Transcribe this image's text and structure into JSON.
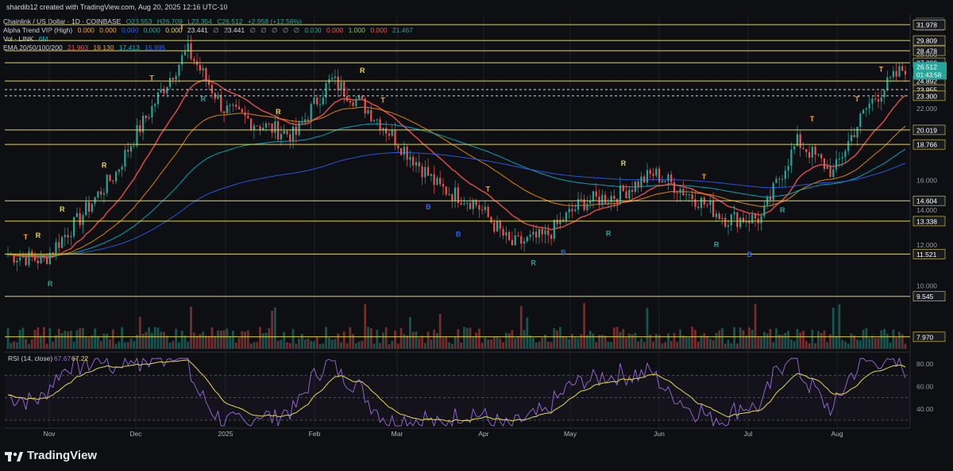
{
  "header": {
    "created": "shardib12 created with TradingView.com, Aug 20, 2025 12:16 UTC-10",
    "symbol_line": {
      "title": "Chainlink / US Dollar · 1D · COINBASE",
      "o": "O23.553",
      "h": "H26.709",
      "l": "L23.354",
      "c": "C26.512",
      "chg": "+2.958 (+12.56%)"
    },
    "alpha_line": {
      "title": "Alpha Trend VIP (High)",
      "values": [
        "0.000",
        "0.000",
        "0.000",
        "0.000",
        "0.000",
        "23.441",
        "∅",
        "23.441",
        "∅",
        "∅",
        "∅",
        "∅",
        "∅",
        "0.000",
        "0.000",
        "1.000",
        "0.000",
        "21.467"
      ]
    },
    "vol_line": {
      "title": "Vol · LINK",
      "value": "6M"
    },
    "ema_line": {
      "title": "EMA 20/50/100/200",
      "values": [
        "21.903",
        "19.130",
        "17.413",
        "15.995"
      ]
    }
  },
  "currency": "USD",
  "levels": [
    "31.978",
    "29.809",
    "28.478",
    "27.000",
    "24.892",
    "23.955",
    "23.300",
    "20.019",
    "18.766",
    "14.604",
    "13.338",
    "11.521",
    "9.545",
    "7.970"
  ],
  "price_ticks": [
    "28.000",
    "22.000",
    "16.000",
    "14.000",
    "12.000",
    "10.000"
  ],
  "last_price": {
    "value": "26.512",
    "countdown": "01:43:58"
  },
  "x_labels": [
    "Nov",
    "Dec",
    "2025",
    "Feb",
    "Mar",
    "Apr",
    "May",
    "Jun",
    "Jul",
    "Aug"
  ],
  "rsi": {
    "title": "RSI (14, close)",
    "values": [
      "67.67",
      "67.22"
    ],
    "ticks": [
      "80.00",
      "60.00",
      "40.00"
    ]
  },
  "brand": "TradingView",
  "colors": {
    "up": "#26a69a",
    "down": "#ef5350",
    "level": "#e5d84a",
    "ema20": "#ef5350",
    "ema50": "#ff9800",
    "ema100": "#00bcd4",
    "ema200": "#2962ff",
    "rsi": "#9c6ade",
    "rsi_ma": "#e5d84a"
  },
  "chart_data": {
    "type": "candlestick",
    "title": "Chainlink / US Dollar · 1D · COINBASE",
    "x": [
      "Nov",
      "Dec",
      "2025",
      "Feb",
      "Mar",
      "Apr",
      "May",
      "Jun",
      "Jul",
      "Aug"
    ],
    "y_range": [
      7.5,
      33.5
    ],
    "log_scale": true,
    "close_path": [
      [
        "Oct end",
        11.5
      ],
      [
        "Nov",
        11.2
      ],
      [
        "Nov mid",
        13.5
      ],
      [
        "Nov end",
        16.5
      ],
      [
        "Dec",
        22.0
      ],
      [
        "Dec mid",
        28.5
      ],
      [
        "Dec end",
        22.0
      ],
      [
        "2025",
        20.5
      ],
      [
        "2025 mid",
        19.5
      ],
      [
        "Jan end",
        25.0
      ],
      [
        "Feb",
        22.0
      ],
      [
        "Feb mid",
        18.5
      ],
      [
        "Mar",
        15.5
      ],
      [
        "Mar mid",
        14.5
      ],
      [
        "Apr",
        12.0
      ],
      [
        "Apr mid",
        12.5
      ],
      [
        "Apr end",
        14.5
      ],
      [
        "May",
        15.0
      ],
      [
        "May mid",
        16.5
      ],
      [
        "Jun",
        15.0
      ],
      [
        "Jun mid",
        13.5
      ],
      [
        "Jul",
        13.5
      ],
      [
        "Jul mid",
        19.0
      ],
      [
        "Aug",
        16.5
      ],
      [
        "Aug mid",
        22.5
      ],
      [
        "Aug end",
        26.5
      ]
    ],
    "horizontal_levels": [
      31.978,
      29.809,
      28.478,
      27.0,
      24.892,
      23.955,
      23.3,
      20.019,
      18.766,
      14.604,
      13.338,
      11.521,
      9.545,
      7.97
    ],
    "rsi": {
      "last": 67.67,
      "ma": 67.22,
      "levels": [
        80,
        60,
        40
      ]
    }
  }
}
